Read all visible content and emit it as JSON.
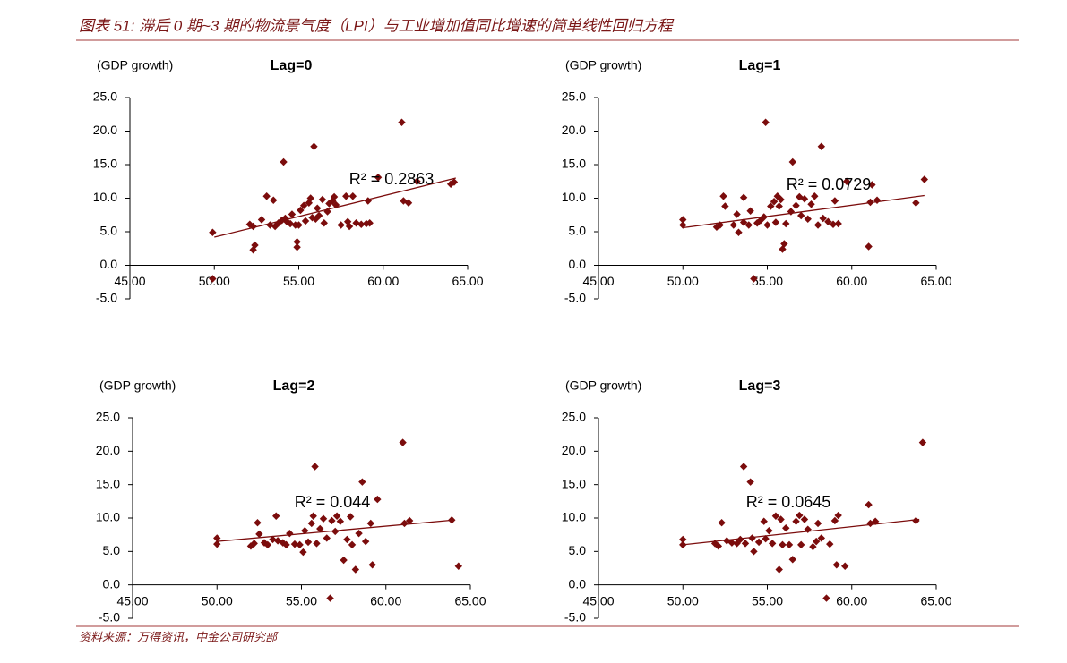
{
  "header": {
    "title": "图表 51: 滞后 0 期~3 期的物流景气度（LPI）与工业增加值同比增速的简单线性回归方程"
  },
  "chart_data": [
    {
      "type": "scatter",
      "title": "Lag=0",
      "y_label": "(GDP growth)",
      "annotation": "R² = 0.2863",
      "color": "#7b0c0c",
      "x": [
        49.9,
        49.9,
        52.1,
        52.3,
        52.4,
        52.3,
        52.8,
        53.1,
        53.3,
        53.5,
        53.6,
        53.8,
        54.0,
        54.1,
        54.2,
        54.3,
        54.5,
        54.6,
        54.8,
        54.9,
        54.9,
        55.0,
        55.1,
        55.3,
        55.4,
        55.6,
        55.7,
        55.8,
        55.9,
        56.0,
        56.1,
        56.2,
        56.4,
        56.5,
        56.7,
        56.8,
        57.0,
        57.1,
        57.2,
        57.5,
        57.8,
        57.9,
        58.0,
        58.2,
        58.4,
        58.7,
        59.0,
        59.2,
        59.1,
        59.7,
        61.1,
        61.2,
        61.5,
        64.0,
        64.2,
        62.0
      ],
      "y": [
        4.9,
        -2.0,
        6.1,
        5.8,
        3.0,
        2.3,
        6.8,
        10.3,
        6.0,
        9.7,
        5.8,
        6.3,
        6.7,
        15.4,
        7.0,
        6.5,
        6.2,
        7.6,
        6.0,
        3.5,
        2.7,
        6.0,
        8.2,
        8.9,
        6.6,
        9.3,
        10.0,
        7.1,
        17.7,
        6.9,
        8.5,
        7.4,
        9.8,
        6.3,
        8.0,
        9.2,
        9.6,
        10.2,
        9.0,
        6.0,
        10.3,
        6.5,
        5.8,
        10.3,
        6.3,
        6.1,
        6.2,
        6.3,
        9.6,
        13.1,
        21.3,
        9.6,
        9.3,
        12.1,
        12.4,
        12.5
      ],
      "trendline": {
        "x": [
          50,
          64.3
        ],
        "y": [
          4.2,
          13.0
        ],
        "color": "#7b0c0c"
      },
      "xlim": [
        45,
        65
      ],
      "ylim": [
        -5,
        25
      ],
      "xticks": [
        {
          "value": 45,
          "label": "45.00"
        },
        {
          "value": 50,
          "label": "50.00"
        },
        {
          "value": 55,
          "label": "55.00"
        },
        {
          "value": 60,
          "label": "60.00"
        },
        {
          "value": 65,
          "label": "65.00"
        }
      ],
      "yticks": [
        {
          "value": -5,
          "label": "-5.0"
        },
        {
          "value": 0,
          "label": "0.0"
        },
        {
          "value": 5,
          "label": "5.0"
        },
        {
          "value": 10,
          "label": "10.0"
        },
        {
          "value": 15,
          "label": "15.0"
        },
        {
          "value": 20,
          "label": "20.0"
        },
        {
          "value": 25,
          "label": "25.0"
        }
      ]
    },
    {
      "type": "scatter",
      "title": "Lag=1",
      "y_label": "(GDP growth)",
      "annotation": "R² = 0.0729",
      "color": "#7b0c0c",
      "x": [
        50.0,
        50.0,
        52.0,
        52.2,
        52.4,
        52.5,
        53.0,
        53.2,
        53.3,
        53.6,
        53.6,
        53.9,
        54.0,
        54.2,
        54.4,
        54.6,
        54.8,
        54.9,
        55.0,
        55.2,
        55.4,
        55.5,
        55.6,
        55.7,
        55.8,
        55.9,
        56.0,
        56.1,
        56.4,
        56.5,
        56.7,
        56.9,
        57.0,
        57.2,
        57.4,
        57.6,
        57.8,
        58.0,
        58.2,
        58.3,
        58.6,
        58.9,
        59.2,
        59.0,
        59.7,
        61.0,
        61.1,
        61.2,
        61.5,
        63.8,
        64.3
      ],
      "y": [
        6.8,
        6.0,
        5.7,
        6.0,
        10.3,
        8.8,
        6.0,
        7.6,
        4.9,
        10.1,
        6.4,
        6.0,
        8.1,
        -2.0,
        6.3,
        6.7,
        7.2,
        21.3,
        6.0,
        8.8,
        9.5,
        6.4,
        10.3,
        8.8,
        9.8,
        2.4,
        3.2,
        6.2,
        8.0,
        15.4,
        8.9,
        10.2,
        7.4,
        9.9,
        6.9,
        9.1,
        10.3,
        6.0,
        17.7,
        7.0,
        6.5,
        6.1,
        6.2,
        9.6,
        12.5,
        2.8,
        9.4,
        12.0,
        9.7,
        9.3,
        12.8
      ],
      "trendline": {
        "x": [
          50,
          64.3
        ],
        "y": [
          5.6,
          10.4
        ],
        "color": "#7b0c0c"
      },
      "xlim": [
        45,
        65
      ],
      "ylim": [
        -5,
        25
      ],
      "xticks": [
        {
          "value": 45,
          "label": "45.00"
        },
        {
          "value": 50,
          "label": "50.00"
        },
        {
          "value": 55,
          "label": "55.00"
        },
        {
          "value": 60,
          "label": "60.00"
        },
        {
          "value": 65,
          "label": "65.00"
        }
      ],
      "yticks": [
        {
          "value": -5,
          "label": "-5.0"
        },
        {
          "value": 0,
          "label": "0.0"
        },
        {
          "value": 5,
          "label": "5.0"
        },
        {
          "value": 10,
          "label": "10.0"
        },
        {
          "value": 15,
          "label": "15.0"
        },
        {
          "value": 20,
          "label": "20.0"
        },
        {
          "value": 25,
          "label": "25.0"
        }
      ]
    },
    {
      "type": "scatter",
      "title": "Lag=2",
      "y_label": "(GDP growth)",
      "annotation": "R² = 0.044",
      "color": "#7b0c0c",
      "x": [
        50.0,
        50.0,
        52.0,
        52.2,
        52.4,
        52.5,
        52.8,
        53.0,
        53.3,
        53.5,
        53.6,
        53.9,
        54.1,
        54.3,
        54.6,
        54.9,
        55.1,
        55.2,
        55.4,
        55.6,
        55.7,
        55.8,
        55.9,
        56.1,
        56.3,
        56.5,
        56.7,
        56.8,
        57.0,
        57.1,
        57.3,
        57.5,
        57.7,
        57.9,
        58.0,
        58.2,
        58.4,
        58.6,
        58.8,
        59.1,
        59.2,
        59.5,
        61.0,
        61.1,
        61.4,
        63.9,
        64.3
      ],
      "y": [
        7.0,
        6.1,
        5.8,
        6.2,
        9.3,
        7.6,
        6.3,
        6.0,
        6.8,
        10.3,
        6.6,
        6.3,
        6.0,
        7.7,
        6.1,
        6.0,
        4.9,
        8.1,
        6.4,
        9.2,
        10.3,
        17.7,
        6.2,
        8.4,
        9.9,
        7.0,
        -2.0,
        9.6,
        8.0,
        10.3,
        9.5,
        3.7,
        6.8,
        10.2,
        6.0,
        2.3,
        7.7,
        15.4,
        6.5,
        9.2,
        3.0,
        12.8,
        21.3,
        9.2,
        9.6,
        9.7,
        2.8
      ],
      "trendline": {
        "x": [
          50,
          64
        ],
        "y": [
          6.5,
          9.7
        ],
        "color": "#7b0c0c"
      },
      "xlim": [
        45,
        65
      ],
      "ylim": [
        -5,
        25
      ],
      "xticks": [
        {
          "value": 45,
          "label": "45.00"
        },
        {
          "value": 50,
          "label": "50.00"
        },
        {
          "value": 55,
          "label": "55.00"
        },
        {
          "value": 60,
          "label": "60.00"
        },
        {
          "value": 65,
          "label": "65.00"
        }
      ],
      "yticks": [
        {
          "value": -5,
          "label": "-5.0"
        },
        {
          "value": 0,
          "label": "0.0"
        },
        {
          "value": 5,
          "label": "5.0"
        },
        {
          "value": 10,
          "label": "10.0"
        },
        {
          "value": 15,
          "label": "15.0"
        },
        {
          "value": 20,
          "label": "20.0"
        },
        {
          "value": 25,
          "label": "25.0"
        }
      ]
    },
    {
      "type": "scatter",
      "title": "Lag=3",
      "y_label": "(GDP growth)",
      "annotation": "R² = 0.0645",
      "color": "#7b0c0c",
      "x": [
        50.0,
        50.0,
        51.9,
        52.1,
        52.3,
        52.6,
        52.9,
        53.2,
        53.4,
        53.6,
        53.7,
        54.0,
        54.1,
        54.2,
        54.5,
        54.8,
        54.9,
        55.1,
        55.3,
        55.5,
        55.7,
        55.8,
        55.9,
        56.1,
        56.3,
        56.5,
        56.7,
        56.9,
        57.0,
        57.2,
        57.4,
        57.7,
        57.9,
        58.0,
        58.2,
        58.5,
        58.7,
        59.1,
        59.0,
        59.2,
        59.6,
        61.0,
        61.1,
        61.4,
        63.8,
        64.2
      ],
      "y": [
        6.8,
        6.0,
        6.2,
        5.8,
        9.3,
        6.6,
        6.3,
        6.2,
        6.8,
        17.7,
        6.2,
        15.4,
        7.0,
        5.0,
        6.4,
        9.5,
        6.9,
        8.1,
        6.2,
        10.3,
        2.3,
        9.8,
        6.0,
        8.5,
        6.0,
        3.8,
        9.5,
        10.4,
        6.0,
        9.8,
        8.3,
        5.7,
        6.5,
        9.2,
        7.0,
        -2.0,
        6.1,
        3.0,
        9.6,
        10.4,
        2.8,
        12.0,
        9.2,
        9.5,
        9.6,
        21.3
      ],
      "trendline": {
        "x": [
          50,
          64
        ],
        "y": [
          6.0,
          9.8
        ],
        "color": "#7b0c0c"
      },
      "xlim": [
        45,
        65
      ],
      "ylim": [
        -5,
        25
      ],
      "xticks": [
        {
          "value": 45,
          "label": "45.00"
        },
        {
          "value": 50,
          "label": "50.00"
        },
        {
          "value": 55,
          "label": "55.00"
        },
        {
          "value": 60,
          "label": "60.00"
        },
        {
          "value": 65,
          "label": "65.00"
        }
      ],
      "yticks": [
        {
          "value": -5,
          "label": "-5.0"
        },
        {
          "value": 0,
          "label": "0.0"
        },
        {
          "value": 5,
          "label": "5.0"
        },
        {
          "value": 10,
          "label": "10.0"
        },
        {
          "value": 15,
          "label": "15.0"
        },
        {
          "value": 20,
          "label": "20.0"
        },
        {
          "value": 25,
          "label": "25.0"
        }
      ]
    }
  ],
  "footer": {
    "source": "资料来源：万得资讯，中金公司研究部"
  }
}
